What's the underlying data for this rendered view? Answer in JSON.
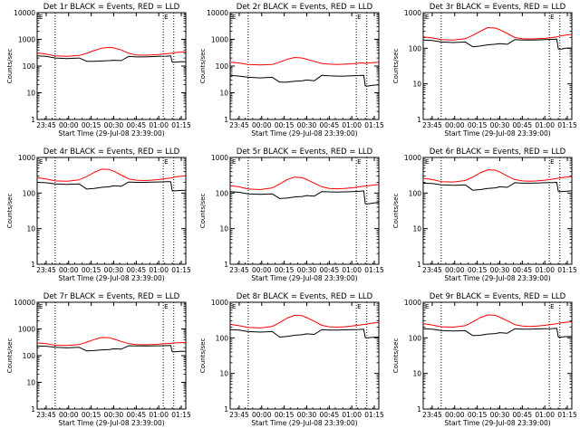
{
  "figure": {
    "colors": {
      "events": "#000000",
      "lld": "#ff0000",
      "axis": "#000000",
      "marker": "#000000"
    }
  },
  "chart_data": [
    {
      "type": "line",
      "title": "Det 1r BLACK = Events, RED = LLD",
      "xlabel": "Start Time (29-Jul-08 23:39:00)",
      "ylabel": "Counts/sec",
      "yscale": "log",
      "ylim": [
        1,
        10000
      ],
      "y_ticks": [
        "1",
        "10",
        "100",
        "1000",
        "10000"
      ],
      "x_range_minutes": [
        0,
        99
      ],
      "x_tick_minutes": [
        6,
        21,
        36,
        51,
        66,
        81,
        96
      ],
      "x_ticks": [
        "23:45",
        "00:00",
        "00:15",
        "00:30",
        "00:45",
        "01:00",
        "01:15"
      ],
      "marker_lines_minutes": [
        12,
        84,
        91
      ],
      "flags": [
        "E"
      ],
      "x_minutes": [
        0,
        6,
        12,
        20,
        28,
        33,
        38,
        43,
        48,
        51,
        56,
        61,
        66,
        71,
        76,
        81,
        86,
        89,
        90,
        92,
        95,
        99
      ],
      "series": [
        {
          "name": "Events",
          "values": [
            240,
            230,
            200,
            190,
            200,
            150,
            150,
            155,
            160,
            165,
            160,
            230,
            220,
            220,
            225,
            230,
            235,
            240,
            140,
            140,
            145,
            145
          ]
        },
        {
          "name": "LLD",
          "values": [
            310,
            280,
            240,
            230,
            250,
            300,
            380,
            470,
            500,
            480,
            400,
            300,
            260,
            255,
            260,
            270,
            290,
            300,
            300,
            320,
            330,
            340
          ]
        }
      ]
    },
    {
      "type": "line",
      "title": "Det 2r BLACK = Events, RED = LLD",
      "xlabel": "Start Time (29-Jul-08 23:39:00)",
      "ylabel": "Counts/sec",
      "yscale": "log",
      "ylim": [
        1,
        10000
      ],
      "y_ticks": [
        "1",
        "10",
        "100",
        "1000",
        "10000"
      ],
      "x_range_minutes": [
        0,
        99
      ],
      "x_tick_minutes": [
        6,
        21,
        36,
        51,
        66,
        81,
        96
      ],
      "x_ticks": [
        "23:45",
        "00:00",
        "00:15",
        "00:30",
        "00:45",
        "01:00",
        "01:15"
      ],
      "marker_lines_minutes": [
        12,
        84,
        91
      ],
      "flags": [
        "E"
      ],
      "x_minutes": [
        0,
        6,
        12,
        20,
        28,
        33,
        38,
        43,
        48,
        51,
        56,
        61,
        66,
        71,
        76,
        81,
        86,
        89,
        90,
        92,
        95,
        99
      ],
      "series": [
        {
          "name": "Events",
          "values": [
            45,
            42,
            38,
            36,
            38,
            25,
            25,
            27,
            28,
            30,
            28,
            45,
            43,
            42,
            42,
            43,
            44,
            45,
            18,
            18,
            19,
            20
          ]
        },
        {
          "name": "LLD",
          "values": [
            140,
            130,
            115,
            110,
            115,
            140,
            180,
            210,
            200,
            180,
            150,
            125,
            118,
            115,
            118,
            122,
            128,
            130,
            125,
            130,
            135,
            140
          ]
        }
      ]
    },
    {
      "type": "line",
      "title": "Det 3r BLACK = Events, RED = LLD",
      "xlabel": "Start Time (29-Jul-08 23:39:00)",
      "ylabel": "Counts/sec",
      "yscale": "log",
      "ylim": [
        1,
        1000
      ],
      "y_ticks": [
        "1",
        "10",
        "100",
        "1000"
      ],
      "x_range_minutes": [
        0,
        99
      ],
      "x_tick_minutes": [
        6,
        21,
        36,
        51,
        66,
        81,
        96
      ],
      "x_ticks": [
        "23:45",
        "00:00",
        "00:15",
        "00:30",
        "00:45",
        "01:00",
        "01:15"
      ],
      "marker_lines_minutes": [
        12,
        84,
        91
      ],
      "flags": [
        "E"
      ],
      "x_minutes": [
        0,
        6,
        12,
        20,
        28,
        33,
        38,
        43,
        48,
        51,
        56,
        61,
        66,
        71,
        76,
        81,
        86,
        89,
        90,
        92,
        95,
        99
      ],
      "series": [
        {
          "name": "Events",
          "values": [
            170,
            165,
            150,
            145,
            150,
            110,
            115,
            125,
            130,
            135,
            130,
            175,
            170,
            170,
            172,
            175,
            178,
            180,
            95,
            95,
            100,
            100
          ]
        },
        {
          "name": "LLD",
          "values": [
            210,
            195,
            175,
            170,
            185,
            230,
            300,
            380,
            370,
            330,
            260,
            200,
            185,
            182,
            185,
            190,
            200,
            210,
            215,
            225,
            235,
            245
          ]
        }
      ]
    },
    {
      "type": "line",
      "title": "Det 4r BLACK = Events, RED = LLD",
      "xlabel": "Start Time (29-Jul-08 23:39:00)",
      "ylabel": "Counts/sec",
      "yscale": "log",
      "ylim": [
        1,
        1000
      ],
      "y_ticks": [
        "1",
        "10",
        "100",
        "1000"
      ],
      "x_range_minutes": [
        0,
        99
      ],
      "x_tick_minutes": [
        6,
        21,
        36,
        51,
        66,
        81,
        96
      ],
      "x_ticks": [
        "23:45",
        "00:00",
        "00:15",
        "00:30",
        "00:45",
        "01:00",
        "01:15"
      ],
      "marker_lines_minutes": [
        12,
        84,
        91
      ],
      "flags": [
        "E"
      ],
      "x_minutes": [
        0,
        6,
        12,
        20,
        28,
        33,
        38,
        43,
        48,
        51,
        56,
        61,
        66,
        71,
        76,
        81,
        86,
        89,
        90,
        92,
        95,
        99
      ],
      "series": [
        {
          "name": "Events",
          "values": [
            200,
            195,
            180,
            175,
            180,
            130,
            135,
            145,
            150,
            160,
            155,
            205,
            200,
            200,
            202,
            205,
            208,
            210,
            115,
            115,
            118,
            120
          ]
        },
        {
          "name": "LLD",
          "values": [
            270,
            250,
            220,
            215,
            235,
            290,
            380,
            470,
            460,
            410,
            320,
            250,
            230,
            225,
            230,
            240,
            255,
            265,
            270,
            285,
            295,
            305
          ]
        }
      ]
    },
    {
      "type": "line",
      "title": "Det 5r BLACK = Events, RED = LLD",
      "xlabel": "Start Time (29-Jul-08 23:39:00)",
      "ylabel": "Counts/sec",
      "yscale": "log",
      "ylim": [
        1,
        1000
      ],
      "y_ticks": [
        "1",
        "10",
        "100",
        "1000"
      ],
      "x_range_minutes": [
        0,
        99
      ],
      "x_tick_minutes": [
        6,
        21,
        36,
        51,
        66,
        81,
        96
      ],
      "x_ticks": [
        "23:45",
        "00:00",
        "00:15",
        "00:30",
        "00:45",
        "01:00",
        "01:15"
      ],
      "marker_lines_minutes": [
        12,
        84,
        91
      ],
      "flags": [
        "E"
      ],
      "x_minutes": [
        0,
        6,
        12,
        20,
        28,
        33,
        38,
        43,
        48,
        51,
        56,
        61,
        66,
        71,
        76,
        81,
        86,
        89,
        90,
        92,
        95,
        99
      ],
      "series": [
        {
          "name": "Events",
          "values": [
            110,
            105,
            95,
            92,
            95,
            70,
            72,
            78,
            80,
            85,
            82,
            110,
            108,
            107,
            108,
            110,
            112,
            115,
            50,
            50,
            52,
            55
          ]
        },
        {
          "name": "LLD",
          "values": [
            160,
            150,
            130,
            125,
            140,
            180,
            240,
            280,
            270,
            240,
            190,
            150,
            135,
            132,
            135,
            140,
            150,
            155,
            155,
            160,
            168,
            175
          ]
        }
      ]
    },
    {
      "type": "line",
      "title": "Det 6r BLACK = Events, RED = LLD",
      "xlabel": "Start Time (29-Jul-08 23:39:00)",
      "ylabel": "Counts/sec",
      "yscale": "log",
      "ylim": [
        1,
        1000
      ],
      "y_ticks": [
        "1",
        "10",
        "100",
        "1000"
      ],
      "x_range_minutes": [
        0,
        99
      ],
      "x_tick_minutes": [
        6,
        21,
        36,
        51,
        66,
        81,
        96
      ],
      "x_ticks": [
        "23:45",
        "00:00",
        "00:15",
        "00:30",
        "00:45",
        "01:00",
        "01:15"
      ],
      "marker_lines_minutes": [
        12,
        84,
        91
      ],
      "flags": [
        "E"
      ],
      "x_minutes": [
        0,
        6,
        12,
        20,
        28,
        33,
        38,
        43,
        48,
        51,
        56,
        61,
        66,
        71,
        76,
        81,
        86,
        89,
        90,
        92,
        95,
        99
      ],
      "series": [
        {
          "name": "Events",
          "values": [
            190,
            185,
            170,
            165,
            170,
            120,
            125,
            135,
            140,
            150,
            145,
            195,
            190,
            190,
            192,
            195,
            198,
            200,
            110,
            110,
            112,
            115
          ]
        },
        {
          "name": "LLD",
          "values": [
            260,
            240,
            210,
            205,
            225,
            280,
            370,
            450,
            440,
            390,
            300,
            240,
            220,
            215,
            220,
            230,
            245,
            255,
            260,
            270,
            280,
            290
          ]
        }
      ]
    },
    {
      "type": "line",
      "title": "Det 7r BLACK = Events, RED = LLD",
      "xlabel": "Start Time (29-Jul-08 23:39:00)",
      "ylabel": "Counts/sec",
      "yscale": "log",
      "ylim": [
        1,
        10000
      ],
      "y_ticks": [
        "1",
        "10",
        "100",
        "1000",
        "10000"
      ],
      "x_range_minutes": [
        0,
        99
      ],
      "x_tick_minutes": [
        6,
        21,
        36,
        51,
        66,
        81,
        96
      ],
      "x_ticks": [
        "23:45",
        "00:00",
        "00:15",
        "00:30",
        "00:45",
        "01:00",
        "01:15"
      ],
      "marker_lines_minutes": [
        12,
        84,
        91
      ],
      "flags": [
        "E"
      ],
      "x_minutes": [
        0,
        6,
        12,
        20,
        28,
        33,
        38,
        43,
        48,
        51,
        56,
        61,
        66,
        71,
        76,
        81,
        86,
        89,
        90,
        92,
        95,
        99
      ],
      "series": [
        {
          "name": "Events",
          "values": [
            230,
            225,
            205,
            195,
            205,
            150,
            155,
            165,
            170,
            180,
            175,
            235,
            230,
            230,
            232,
            235,
            238,
            240,
            140,
            140,
            145,
            145
          ]
        },
        {
          "name": "LLD",
          "values": [
            300,
            280,
            245,
            240,
            260,
            320,
            400,
            480,
            470,
            420,
            340,
            280,
            260,
            255,
            260,
            270,
            285,
            290,
            295,
            300,
            305,
            310
          ]
        }
      ]
    },
    {
      "type": "line",
      "title": "Det 8r BLACK = Events, RED = LLD",
      "xlabel": "Start Time (29-Jul-08 23:39:00)",
      "ylabel": "Counts/sec",
      "yscale": "log",
      "ylim": [
        1,
        1000
      ],
      "y_ticks": [
        "1",
        "10",
        "100",
        "1000"
      ],
      "x_range_minutes": [
        0,
        99
      ],
      "x_tick_minutes": [
        6,
        21,
        36,
        51,
        66,
        81,
        96
      ],
      "x_ticks": [
        "23:45",
        "00:00",
        "00:15",
        "00:30",
        "00:45",
        "01:00",
        "01:15"
      ],
      "marker_lines_minutes": [
        12,
        84,
        91
      ],
      "flags": [
        "E"
      ],
      "x_minutes": [
        0,
        6,
        12,
        20,
        28,
        33,
        38,
        43,
        48,
        51,
        56,
        61,
        66,
        71,
        76,
        81,
        86,
        89,
        90,
        92,
        95,
        99
      ],
      "series": [
        {
          "name": "Events",
          "values": [
            170,
            165,
            150,
            145,
            150,
            105,
            110,
            118,
            122,
            130,
            125,
            170,
            165,
            165,
            168,
            170,
            172,
            175,
            100,
            100,
            103,
            105
          ]
        },
        {
          "name": "LLD",
          "values": [
            240,
            220,
            195,
            190,
            210,
            270,
            360,
            430,
            420,
            370,
            290,
            225,
            205,
            200,
            205,
            215,
            228,
            238,
            240,
            250,
            260,
            270
          ]
        }
      ]
    },
    {
      "type": "line",
      "title": "Det 9r BLACK = Events, RED = LLD",
      "xlabel": "Start Time (29-Jul-08 23:39:00)",
      "ylabel": "Counts/sec",
      "yscale": "log",
      "ylim": [
        1,
        1000
      ],
      "y_ticks": [
        "1",
        "10",
        "100",
        "1000"
      ],
      "x_range_minutes": [
        0,
        99
      ],
      "x_tick_minutes": [
        6,
        21,
        36,
        51,
        66,
        81,
        96
      ],
      "x_ticks": [
        "23:45",
        "00:00",
        "00:15",
        "00:30",
        "00:45",
        "01:00",
        "01:15"
      ],
      "marker_lines_minutes": [
        12,
        84,
        91
      ],
      "flags": [
        "E"
      ],
      "x_minutes": [
        0,
        6,
        12,
        20,
        28,
        33,
        38,
        43,
        48,
        51,
        56,
        61,
        66,
        71,
        76,
        81,
        86,
        89,
        90,
        92,
        95,
        99
      ],
      "series": [
        {
          "name": "Events",
          "values": [
            180,
            175,
            160,
            155,
            160,
            115,
            118,
            128,
            132,
            140,
            135,
            180,
            175,
            175,
            178,
            180,
            182,
            185,
            105,
            105,
            108,
            110
          ]
        },
        {
          "name": "LLD",
          "values": [
            250,
            230,
            205,
            200,
            220,
            280,
            370,
            440,
            430,
            380,
            300,
            235,
            215,
            210,
            215,
            225,
            240,
            250,
            255,
            265,
            275,
            285
          ]
        }
      ]
    }
  ]
}
